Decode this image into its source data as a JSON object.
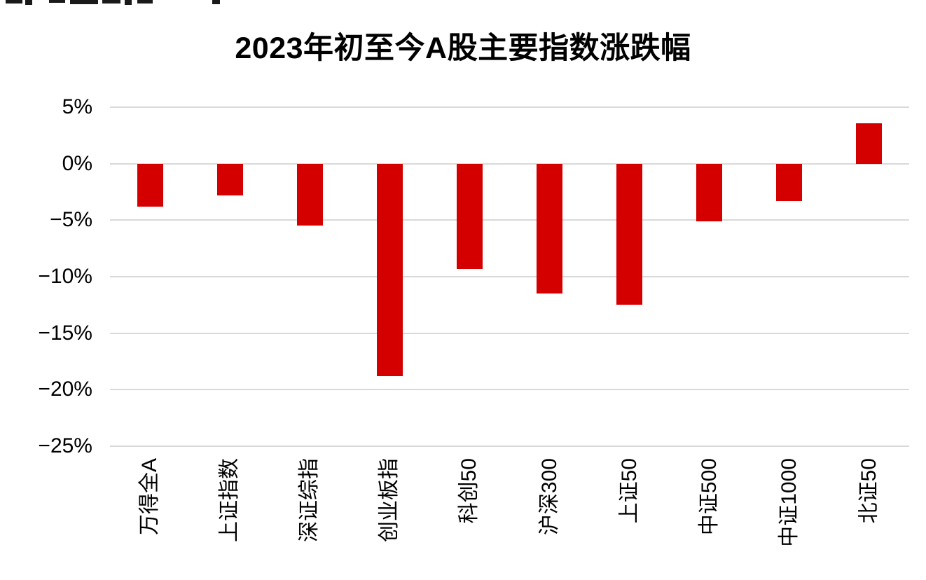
{
  "chart_data": {
    "type": "bar",
    "title": "2023年初至今A股主要指数涨跌幅",
    "categories": [
      "万得全A",
      "上证指数",
      "深证综指",
      "创业板指",
      "科创50",
      "沪深300",
      "上证50",
      "中证500",
      "中证1000",
      "北证50"
    ],
    "values": [
      -3.8,
      -2.8,
      -5.5,
      -18.8,
      -9.3,
      -11.5,
      -12.5,
      -5.1,
      -3.3,
      3.6
    ],
    "unit": "%",
    "xlabel": "",
    "ylabel": "",
    "y_ticks": [
      "5%",
      "0%",
      "−5%",
      "−10%",
      "−15%",
      "−20%",
      "−25%"
    ],
    "y_tick_values": [
      5,
      0,
      -5,
      -10,
      -15,
      -20,
      -25
    ],
    "ylim": [
      -25,
      5
    ],
    "grid": true,
    "legend": "none",
    "bar_color": "#d40000",
    "gridline_color": "#d9d9d9",
    "text_color": "#000000"
  }
}
